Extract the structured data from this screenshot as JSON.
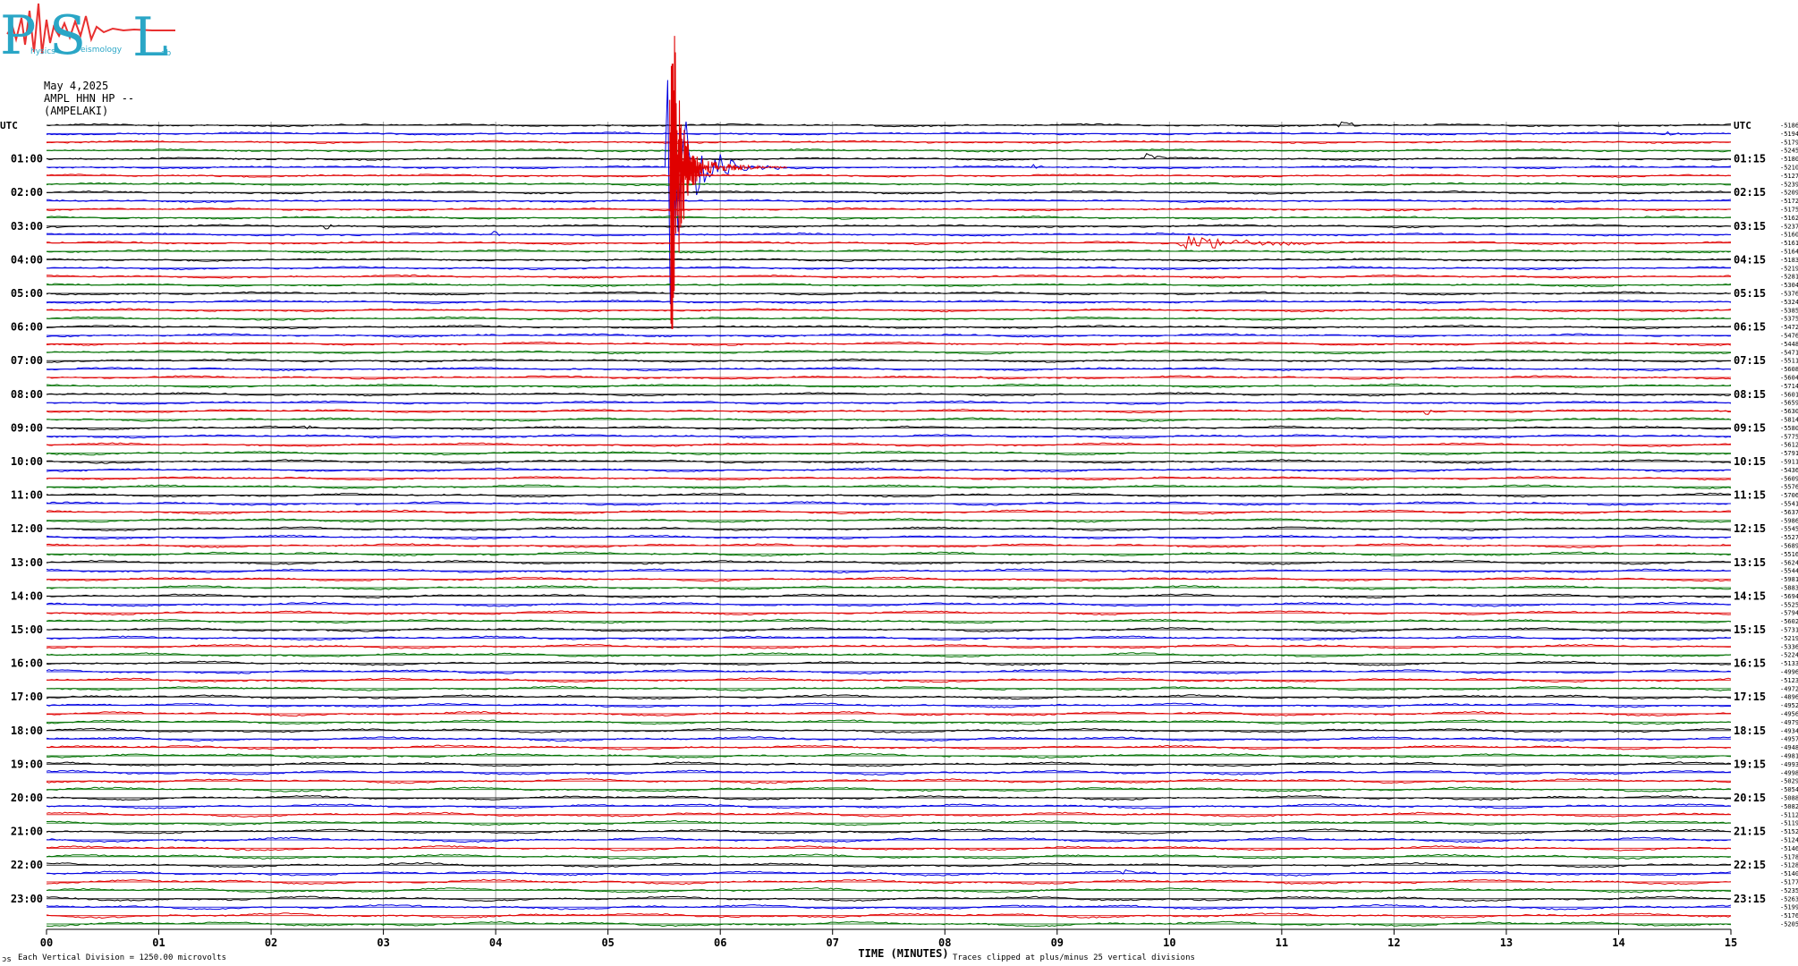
{
  "logo": {
    "letters": [
      "P",
      "S",
      "L"
    ],
    "subtext": [
      "hysics",
      "eismology",
      "ab"
    ],
    "colors": {
      "letters": "#2aa6c6",
      "wave": "#e83030"
    }
  },
  "header": {
    "date": "May 4,2025",
    "station": "AMPL HHN HP --",
    "site": "(AMPELAKI)"
  },
  "axis": {
    "left_title": "UTC",
    "right_title": "UTC",
    "left_labels": [
      "01:00",
      "02:00",
      "03:00",
      "04:00",
      "05:00",
      "06:00",
      "07:00",
      "08:00",
      "09:00",
      "10:00",
      "11:00",
      "12:00",
      "13:00",
      "14:00",
      "15:00",
      "16:00",
      "17:00",
      "18:00",
      "19:00",
      "20:00",
      "21:00",
      "22:00",
      "23:00"
    ],
    "right_labels": [
      "01:15",
      "02:15",
      "03:15",
      "04:15",
      "05:15",
      "06:15",
      "07:15",
      "08:15",
      "09:15",
      "10:15",
      "11:15",
      "12:15",
      "13:15",
      "14:15",
      "15:15",
      "16:15",
      "17:15",
      "18:15",
      "19:15",
      "20:15",
      "21:15",
      "22:15",
      "23:15"
    ],
    "x_ticks": [
      "00",
      "01",
      "02",
      "03",
      "04",
      "05",
      "06",
      "07",
      "08",
      "09",
      "10",
      "11",
      "12",
      "13",
      "14",
      "15"
    ],
    "xlabel": "TIME (MINUTES)"
  },
  "footer": {
    "left_mark": "ɔs",
    "scale": "Each Vertical Division = 1250.00 microvolts",
    "clip": "Traces clipped at plus/minus 25 vertical divisions"
  },
  "chart_data": {
    "type": "line",
    "title": "",
    "xlabel": "TIME (MINUTES)",
    "ylabel": "UTC",
    "xlim": [
      0,
      15
    ],
    "rows": 96,
    "minutes_per_row": 15,
    "trace_colors": [
      "#000000",
      "#0000e0",
      "#e00000",
      "#007000"
    ],
    "grid": true,
    "vertical_grid_color": "#a0a0a0",
    "events": [
      {
        "row": 0,
        "minute": 11.5,
        "amplitude": 0.8,
        "duration_min": 0.6
      },
      {
        "row": 1,
        "minute": 14.4,
        "amplitude": 0.5,
        "duration_min": 0.3
      },
      {
        "row": 4,
        "minute": 9.8,
        "amplitude": 1.3,
        "duration_min": 0.3
      },
      {
        "row": 5,
        "minute": 5.55,
        "amplitude": 40,
        "duration_min": 0.4
      },
      {
        "row": 5,
        "minute": 5.95,
        "amplitude": 4,
        "duration_min": 0.6
      },
      {
        "row": 5,
        "minute": 8.8,
        "amplitude": 0.6,
        "duration_min": 0.2
      },
      {
        "row": 12,
        "minute": 2.5,
        "amplitude": 1.0,
        "duration_min": 0.1
      },
      {
        "row": 13,
        "minute": 4.0,
        "amplitude": 1.0,
        "duration_min": 0.1
      },
      {
        "row": 14,
        "minute": 10.1,
        "amplitude": 2.2,
        "duration_min": 1.5
      },
      {
        "row": 30,
        "minute": 8.3,
        "amplitude": 0.8,
        "duration_min": 0.2
      },
      {
        "row": 34,
        "minute": 12.3,
        "amplitude": 0.8,
        "duration_min": 0.1
      },
      {
        "row": 36,
        "minute": 2.3,
        "amplitude": 1.0,
        "duration_min": 0.1
      },
      {
        "row": 89,
        "minute": 9.6,
        "amplitude": 0.6,
        "duration_min": 0.3
      }
    ],
    "row_end_values": [
      -5186,
      -5194,
      -5179,
      -5245,
      -5180,
      -5210,
      -5127,
      -5239,
      -5209,
      -5172,
      -5175,
      -5162,
      -5237,
      -5160,
      -5161,
      -5164,
      -5183,
      -5219,
      -5281,
      -5304,
      -5376,
      -5324,
      -5385,
      -5375,
      -5472,
      -5476,
      -5448,
      -5471,
      -5511,
      -5608,
      -5604,
      -5714,
      -5601,
      -5659,
      -5630,
      -5814,
      -5580,
      -5775,
      -5612,
      -5791,
      -5911,
      -5436,
      -5609,
      -5576,
      -5706,
      -5541,
      -5637,
      -5986,
      -5545,
      -5527,
      -5689,
      -5516,
      -5624,
      -5544,
      -5981,
      -5883,
      -5694,
      -5525,
      -5794,
      -5602,
      -5731,
      -5219,
      -5336,
      -5224,
      -5133,
      -4996,
      -5123,
      -4972,
      -4896,
      -4952,
      -4956,
      -4979,
      -4934,
      -4957,
      -4948,
      -4981,
      -4993,
      -4998,
      -5029,
      -5054,
      -5088,
      -5082,
      -5112,
      -5119,
      -5152,
      -5124,
      -5146,
      -5178,
      -5128,
      -5140,
      -5177,
      -5235,
      -5263,
      -5199,
      -5176,
      -5205
    ]
  }
}
